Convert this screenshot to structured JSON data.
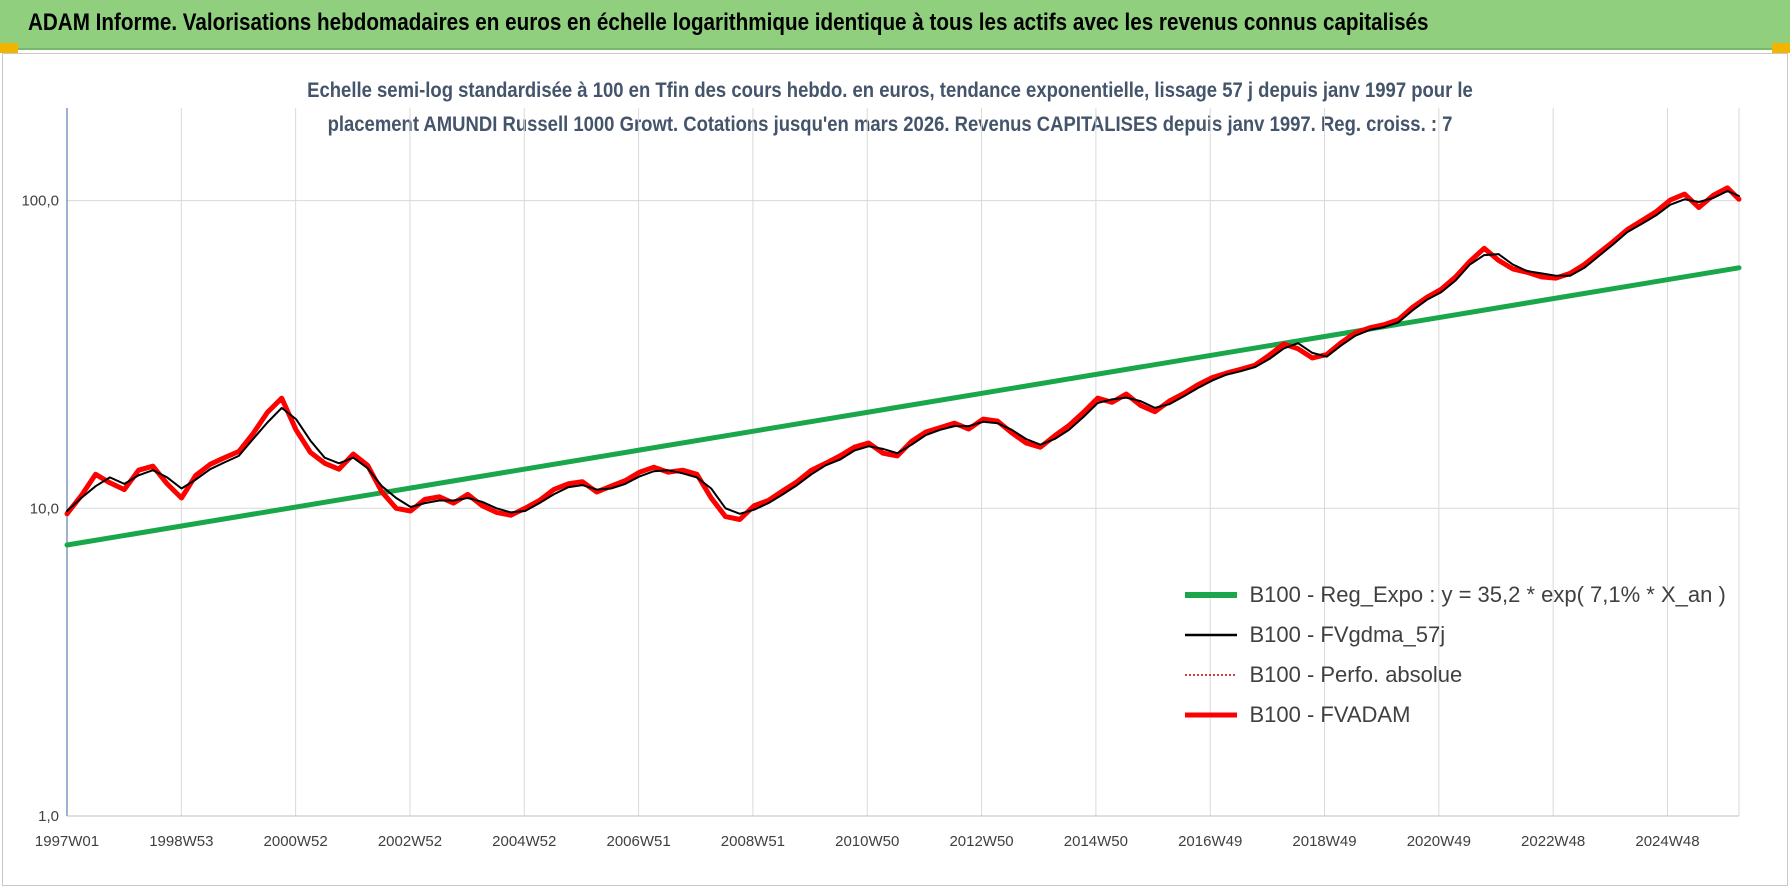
{
  "header": {
    "title": "ADAM Informe. Valorisations hebdomadaires en euros en échelle logarithmique identique à tous les actifs avec les revenus connus capitalisés"
  },
  "chart_data": {
    "type": "line",
    "title_line1": "Echelle semi-log standardisée à 100 en Tfin des cours hebdo. en euros, tendance exponentielle, lissage 57 j depuis janv 1997 pour le",
    "title_line2": "placement AMUNDI Russell 1000 Growt. Cotations jusqu'en mars 2026. Revenus CAPITALISES depuis janv 1997. Reg. croiss. : 7",
    "y_scale": "log",
    "ylim": [
      1,
      200
    ],
    "y_ticks": [
      "1,0",
      "10,0",
      "100,0"
    ],
    "x_ticks": [
      "1997W01",
      "1998W53",
      "2000W52",
      "2002W52",
      "2004W52",
      "2006W51",
      "2008W51",
      "2010W50",
      "2012W50",
      "2014W50",
      "2016W49",
      "2018W49",
      "2020W49",
      "2022W48",
      "2024W48"
    ],
    "grid": true,
    "legend_position": "bottom-right",
    "series": [
      {
        "name": "B100 - Reg_Expo : y = 35,2 * exp( 7,1% *  X_an )",
        "color": "#1aa64b",
        "style": "solid-thick",
        "x": [
          1997.0,
          2026.2
        ],
        "y": [
          7.6,
          60.5
        ]
      },
      {
        "name": "B100 - FVgdma_57j",
        "color": "#000000",
        "style": "solid-thin",
        "x": [
          1997.0,
          1997.25,
          1997.5,
          1997.75,
          1998.0,
          1998.25,
          1998.5,
          1998.75,
          1999.0,
          1999.25,
          1999.5,
          1999.75,
          2000.0,
          2000.25,
          2000.5,
          2000.75,
          2001.0,
          2001.25,
          2001.5,
          2001.75,
          2002.0,
          2002.25,
          2002.5,
          2002.75,
          2003.0,
          2003.25,
          2003.5,
          2003.75,
          2004.0,
          2004.25,
          2004.5,
          2004.75,
          2005.0,
          2005.25,
          2005.5,
          2005.75,
          2006.0,
          2006.25,
          2006.5,
          2006.75,
          2007.0,
          2007.25,
          2007.5,
          2007.75,
          2008.0,
          2008.25,
          2008.5,
          2008.75,
          2009.0,
          2009.25,
          2009.5,
          2009.75,
          2010.0,
          2010.25,
          2010.5,
          2010.75,
          2011.0,
          2011.25,
          2011.5,
          2011.75,
          2012.0,
          2012.25,
          2012.5,
          2012.75,
          2013.0,
          2013.25,
          2013.5,
          2013.75,
          2014.0,
          2014.25,
          2014.5,
          2014.75,
          2015.0,
          2015.25,
          2015.5,
          2015.75,
          2016.0,
          2016.25,
          2016.5,
          2016.75,
          2017.0,
          2017.25,
          2017.5,
          2017.75,
          2018.0,
          2018.25,
          2018.5,
          2018.75,
          2019.0,
          2019.25,
          2019.5,
          2019.75,
          2020.0,
          2020.25,
          2020.5,
          2020.75,
          2021.0,
          2021.25,
          2021.5,
          2021.75,
          2022.0,
          2022.25,
          2022.5,
          2022.75,
          2023.0,
          2023.25,
          2023.5,
          2023.75,
          2024.0,
          2024.25,
          2024.5,
          2024.75,
          2025.0,
          2025.25,
          2025.5,
          2025.75,
          2026.0,
          2026.2
        ],
        "y": [
          9.8,
          10.8,
          11.8,
          12.6,
          12.0,
          12.8,
          13.3,
          12.6,
          11.6,
          12.4,
          13.4,
          14.1,
          14.8,
          16.8,
          19.0,
          21.2,
          19.5,
          16.6,
          14.6,
          14.0,
          14.6,
          13.5,
          11.8,
          10.8,
          10.1,
          10.4,
          10.6,
          10.6,
          10.8,
          10.5,
          10.0,
          9.7,
          9.8,
          10.4,
          11.1,
          11.7,
          11.9,
          11.5,
          11.6,
          12.0,
          12.7,
          13.2,
          13.3,
          13.0,
          12.6,
          11.6,
          10.0,
          9.6,
          9.9,
          10.4,
          11.1,
          11.9,
          12.9,
          13.8,
          14.4,
          15.4,
          15.9,
          15.6,
          15.1,
          16.1,
          17.3,
          18.0,
          18.5,
          18.5,
          19.1,
          18.9,
          18.0,
          16.8,
          16.1,
          16.8,
          18.0,
          19.8,
          22.0,
          22.6,
          22.9,
          22.3,
          21.2,
          21.8,
          23.1,
          24.6,
          26.0,
          27.2,
          27.9,
          28.8,
          30.6,
          33.1,
          34.4,
          32.0,
          31.1,
          33.8,
          36.4,
          38.0,
          38.8,
          40.2,
          44.0,
          47.6,
          50.4,
          55.0,
          62.0,
          66.5,
          67.0,
          62.0,
          59.0,
          58.0,
          57.0,
          57.0,
          60.5,
          66.0,
          72.0,
          79.0,
          84.0,
          89.5,
          97.0,
          101.0,
          99.0,
          102.0,
          107.5,
          103.5
        ]
      },
      {
        "name": "B100 - Perfo. absolue",
        "color": "#c00000",
        "style": "dotted",
        "x": [],
        "y": []
      },
      {
        "name": "B100 - FVADAM",
        "color": "#ff0000",
        "style": "solid-thick",
        "x": [
          1997.0,
          1997.25,
          1997.5,
          1997.75,
          1998.0,
          1998.25,
          1998.5,
          1998.75,
          1999.0,
          1999.25,
          1999.5,
          1999.75,
          2000.0,
          2000.25,
          2000.5,
          2000.75,
          2001.0,
          2001.25,
          2001.5,
          2001.75,
          2002.0,
          2002.25,
          2002.5,
          2002.75,
          2003.0,
          2003.25,
          2003.5,
          2003.75,
          2004.0,
          2004.25,
          2004.5,
          2004.75,
          2005.0,
          2005.25,
          2005.5,
          2005.75,
          2006.0,
          2006.25,
          2006.5,
          2006.75,
          2007.0,
          2007.25,
          2007.5,
          2007.75,
          2008.0,
          2008.25,
          2008.5,
          2008.75,
          2009.0,
          2009.25,
          2009.5,
          2009.75,
          2010.0,
          2010.25,
          2010.5,
          2010.75,
          2011.0,
          2011.25,
          2011.5,
          2011.75,
          2012.0,
          2012.25,
          2012.5,
          2012.75,
          2013.0,
          2013.25,
          2013.5,
          2013.75,
          2014.0,
          2014.25,
          2014.5,
          2014.75,
          2015.0,
          2015.25,
          2015.5,
          2015.75,
          2016.0,
          2016.25,
          2016.5,
          2016.75,
          2017.0,
          2017.25,
          2017.5,
          2017.75,
          2018.0,
          2018.25,
          2018.5,
          2018.75,
          2019.0,
          2019.25,
          2019.5,
          2019.75,
          2020.0,
          2020.25,
          2020.5,
          2020.75,
          2021.0,
          2021.25,
          2021.5,
          2021.75,
          2022.0,
          2022.25,
          2022.5,
          2022.75,
          2023.0,
          2023.25,
          2023.5,
          2023.75,
          2024.0,
          2024.25,
          2024.5,
          2024.75,
          2025.0,
          2025.25,
          2025.5,
          2025.75,
          2026.0,
          2026.2
        ],
        "y": [
          9.6,
          11.0,
          12.9,
          12.1,
          11.5,
          13.3,
          13.7,
          12.0,
          10.8,
          12.8,
          13.9,
          14.6,
          15.3,
          17.5,
          20.5,
          22.8,
          18.0,
          15.2,
          14.0,
          13.4,
          15.0,
          13.8,
          11.3,
          10.0,
          9.8,
          10.7,
          10.9,
          10.4,
          11.1,
          10.2,
          9.7,
          9.5,
          10.0,
          10.6,
          11.5,
          12.0,
          12.2,
          11.3,
          11.8,
          12.3,
          13.1,
          13.6,
          13.1,
          13.3,
          12.9,
          10.8,
          9.4,
          9.2,
          10.2,
          10.6,
          11.4,
          12.2,
          13.3,
          14.0,
          14.8,
          15.8,
          16.3,
          15.1,
          14.8,
          16.5,
          17.7,
          18.3,
          18.9,
          18.1,
          19.5,
          19.2,
          17.6,
          16.3,
          15.8,
          17.2,
          18.6,
          20.5,
          22.8,
          22.1,
          23.5,
          21.6,
          20.6,
          22.3,
          23.6,
          25.2,
          26.6,
          27.5,
          28.3,
          29.2,
          31.5,
          34.2,
          33.0,
          30.8,
          31.6,
          34.5,
          37.2,
          38.6,
          39.5,
          41.0,
          45.0,
          48.5,
          51.5,
          56.5,
          63.5,
          70.0,
          64.0,
          60.0,
          58.5,
          56.5,
          56.0,
          58.0,
          62.0,
          67.5,
          73.5,
          80.5,
          86.0,
          92.0,
          100.5,
          105.0,
          95.0,
          104.0,
          110.0,
          101.0
        ]
      }
    ]
  }
}
